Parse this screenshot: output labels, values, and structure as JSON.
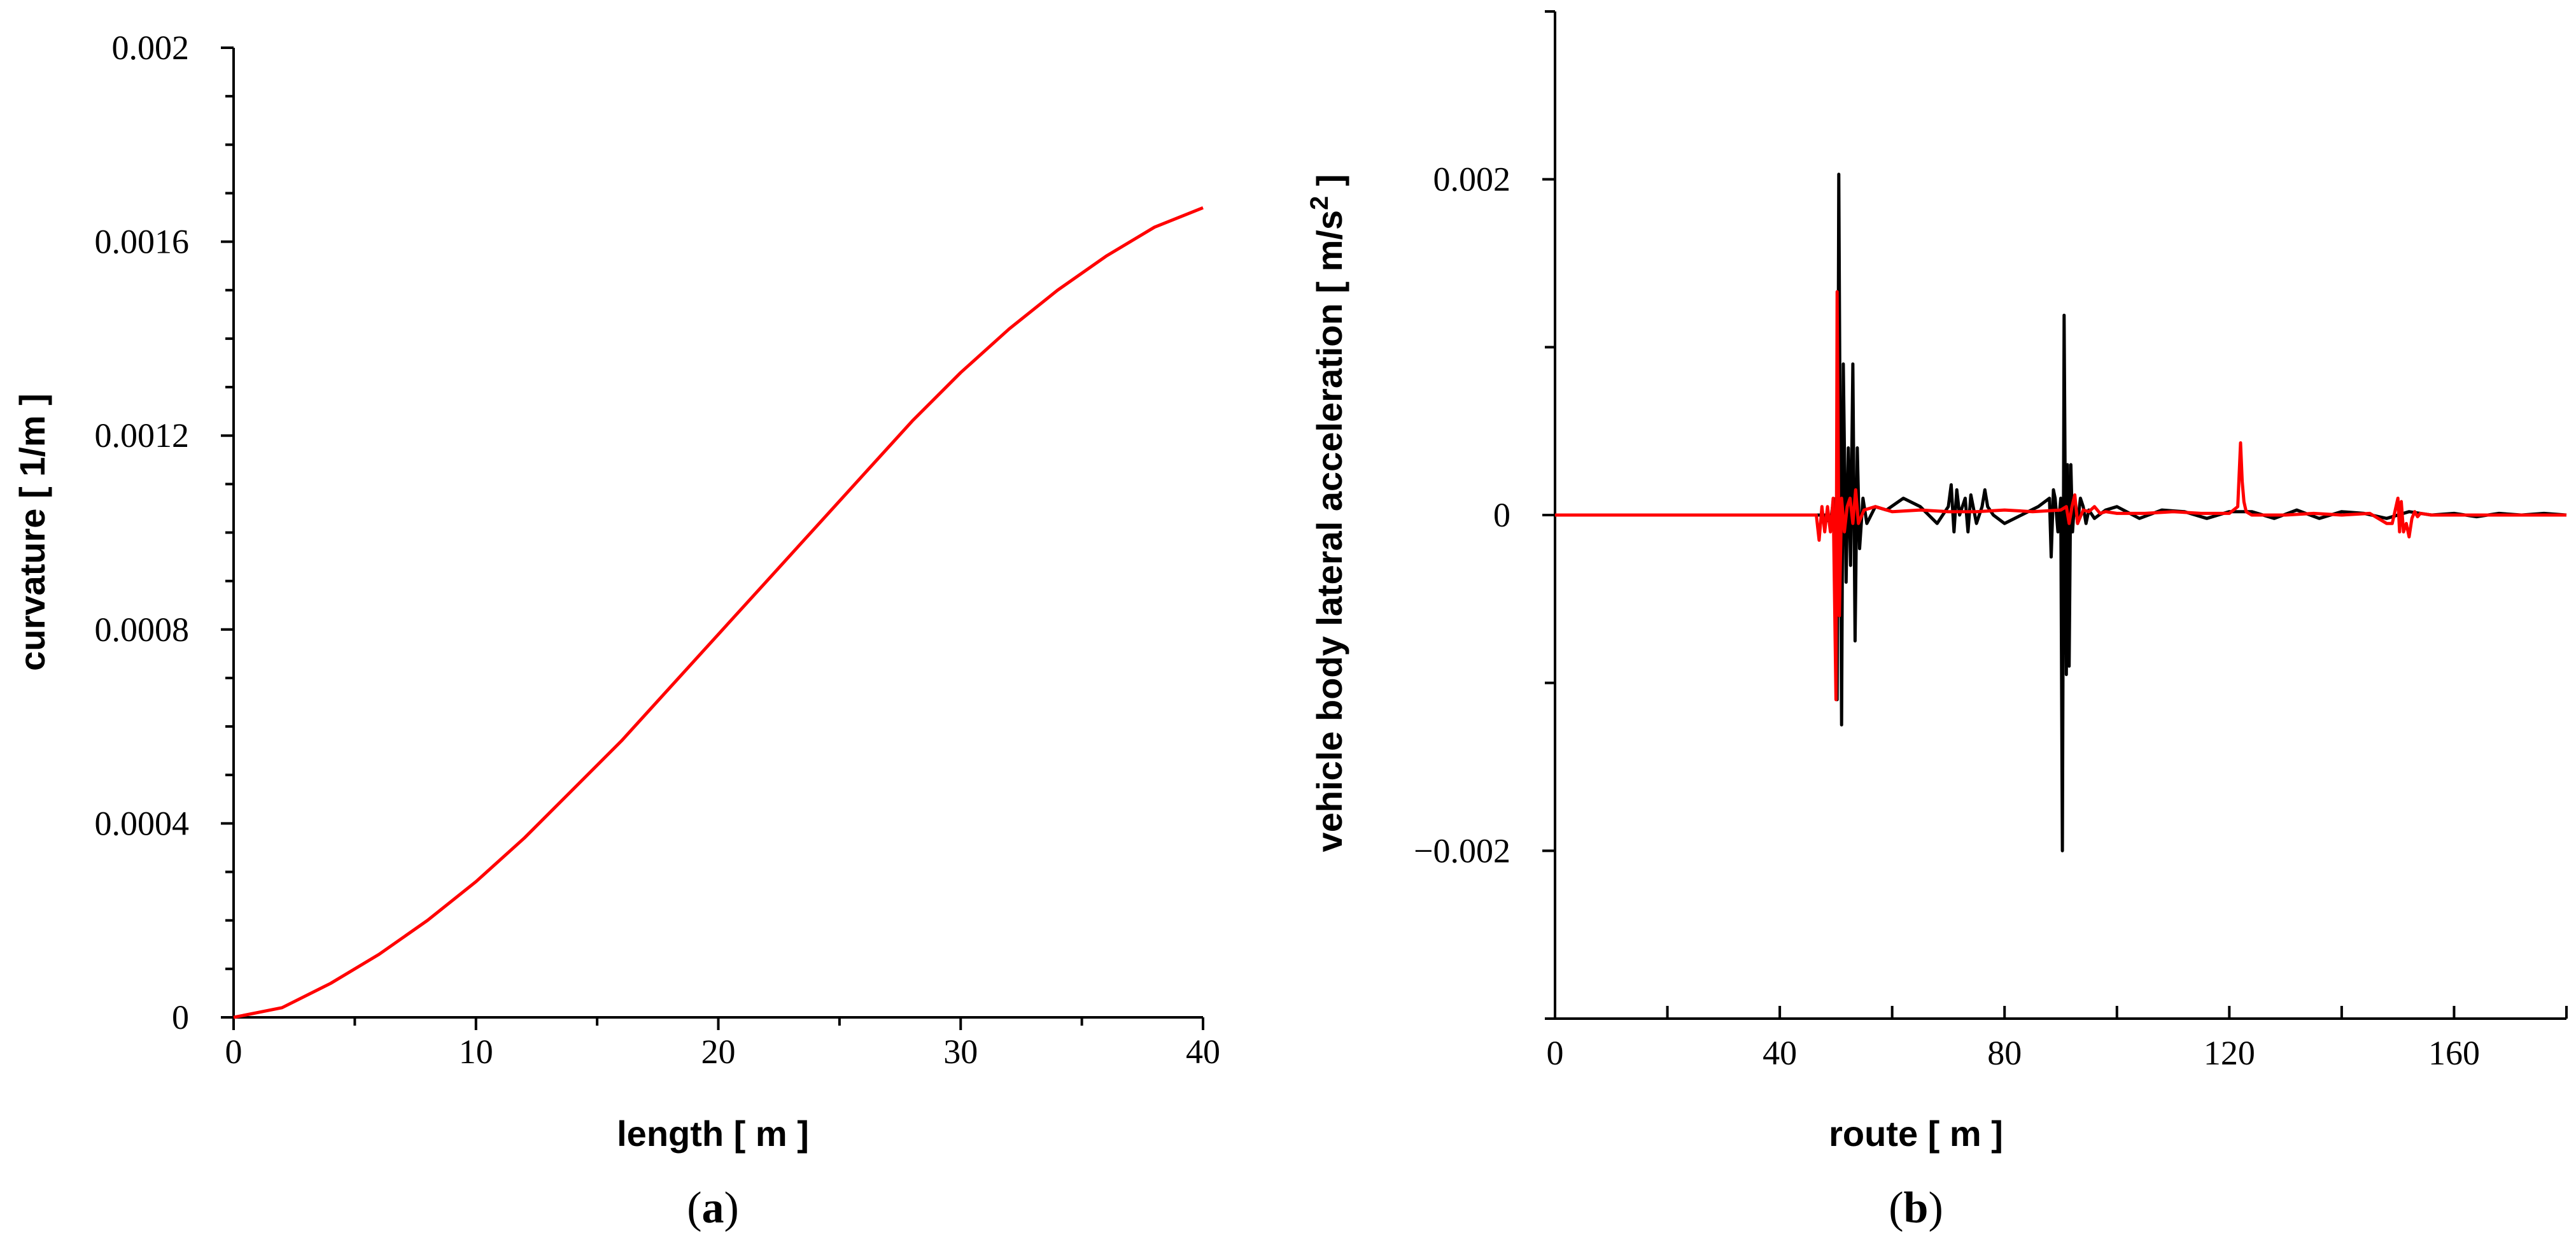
{
  "chart_data": [
    {
      "panel": "(a)",
      "panel_letter": "a",
      "type": "line",
      "xlabel": "length [ m ]",
      "ylabel": "curvature [ 1/m ]",
      "xlim": [
        0,
        40
      ],
      "ylim": [
        0,
        0.002
      ],
      "x_tick_labels": [
        "0",
        "10",
        "20",
        "30",
        "40"
      ],
      "y_tick_labels": [
        "0",
        "0.0004",
        "0.0008",
        "0.0012",
        "0.0016",
        "0.002"
      ],
      "grid": false,
      "series": [
        {
          "color": "#ff0000",
          "x": [
            0,
            2,
            4,
            6,
            8,
            10,
            12,
            14,
            16,
            18,
            20,
            22,
            24,
            26,
            28,
            30,
            32,
            34,
            36,
            38,
            40
          ],
          "y": [
            0,
            2e-05,
            7e-05,
            0.00013,
            0.0002,
            0.00028,
            0.00037,
            0.00047,
            0.00057,
            0.00068,
            0.00079,
            0.0009,
            0.00101,
            0.00112,
            0.00123,
            0.00133,
            0.00142,
            0.0015,
            0.00157,
            0.00163,
            0.00167
          ]
        }
      ]
    },
    {
      "panel": "(b)",
      "panel_letter": "b",
      "type": "line",
      "xlabel": "route [ m ]",
      "ylabel": "vehicle body lateral acceleration [ m/s",
      "ylabel_sup": "2",
      "ylabel_end": " ]",
      "xlim": [
        0,
        180
      ],
      "ylim": [
        -0.003,
        0.003
      ],
      "x_tick_labels": [
        "0",
        "40",
        "80",
        "120",
        "160"
      ],
      "y_tick_labels": [
        "−0.002",
        "0",
        "0.002"
      ],
      "grid": false,
      "series": [
        {
          "color": "#000000",
          "x": [
            0,
            47,
            48,
            49,
            49.5,
            50,
            50.2,
            50.5,
            51,
            51.3,
            51.8,
            52.2,
            52.6,
            53,
            53.4,
            53.8,
            54.2,
            54.8,
            55.5,
            57,
            59,
            62,
            65,
            68,
            70,
            70.5,
            71,
            71.5,
            72,
            73,
            73.5,
            74,
            75,
            76,
            76.5,
            77,
            78,
            80,
            83,
            86,
            88,
            88.3,
            88.7,
            89,
            89.5,
            90,
            90.3,
            90.6,
            91,
            91.2,
            91.5,
            91.8,
            92.1,
            92.5,
            93,
            93.5,
            94,
            94.5,
            95,
            96,
            98,
            100,
            104,
            108,
            112,
            116,
            120,
            124,
            128,
            132,
            136,
            140,
            144,
            148,
            152,
            156,
            160,
            164,
            168,
            172,
            176,
            180
          ],
          "y": [
            0,
            0,
            0,
            -5e-05,
            8e-05,
            0.0001,
            -0.0011,
            0.00203,
            -0.00125,
            0.0009,
            -0.0004,
            0.0004,
            -0.0003,
            0.0009,
            -0.00075,
            0.0004,
            -0.0002,
            0.0001,
            -5e-05,
            5e-05,
            3e-05,
            0.0001,
            5e-05,
            -5e-05,
            5e-05,
            0.00018,
            -0.0001,
            0.00015,
            0,
            0.0001,
            -0.0001,
            0.00012,
            -5e-05,
            5e-05,
            0.00015,
            5e-05,
            0,
            -5e-05,
            0,
            5e-05,
            0.0001,
            -0.00025,
            0.00015,
            0.0001,
            -0.0001,
            0.0001,
            -0.002,
            0.00119,
            -0.00095,
            0.0003,
            -0.0009,
            0.0003,
            -0.0001,
            0.0001,
            -5e-05,
            0.0001,
            5e-05,
            -5e-05,
            3e-05,
            -2e-05,
            3e-05,
            5e-05,
            -2e-05,
            3e-05,
            2e-05,
            -2e-05,
            2e-05,
            2e-05,
            -2e-05,
            3e-05,
            -2e-05,
            2e-05,
            1e-05,
            -2e-05,
            2e-05,
            0,
            1e-05,
            -1e-05,
            1e-05,
            0,
            1e-05,
            0
          ]
        },
        {
          "color": "#ff0000",
          "x": [
            0,
            46.5,
            47,
            47.5,
            48,
            48.5,
            49,
            49.5,
            50,
            50.2,
            50.6,
            51,
            51.5,
            52,
            52.5,
            53,
            53.5,
            54,
            55,
            57,
            60,
            65,
            70,
            75,
            80,
            85,
            90,
            91,
            91.5,
            92,
            92.5,
            93,
            94,
            95,
            96,
            97,
            98,
            100,
            105,
            110,
            115,
            120,
            121.5,
            122,
            122.3,
            122.6,
            123,
            123.5,
            124,
            126,
            130,
            135,
            140,
            145,
            148,
            149,
            150,
            150.3,
            150.6,
            151,
            151.5,
            152,
            152.5,
            153,
            153.5,
            154,
            156,
            160,
            165,
            170,
            175,
            180
          ],
          "y": [
            0,
            0,
            -0.00015,
            5e-05,
            -0.0001,
            5e-05,
            -0.0001,
            0.0001,
            -0.0011,
            0.00133,
            -0.0006,
            0.0001,
            -0.0001,
            5e-05,
            0.0001,
            -5e-05,
            0.00015,
            -5e-05,
            3e-05,
            5e-05,
            2e-05,
            3e-05,
            2e-05,
            2e-05,
            3e-05,
            2e-05,
            3e-05,
            5e-05,
            -5e-05,
            5e-05,
            0.00012,
            -5e-05,
            3e-05,
            2e-05,
            5e-05,
            1e-05,
            2e-05,
            1e-05,
            1e-05,
            2e-05,
            1e-05,
            1e-05,
            5e-05,
            0.00043,
            0.0002,
            8e-05,
            2e-05,
            1e-05,
            0,
            0,
            0,
            1e-05,
            0,
            1e-05,
            -5e-05,
            -5e-05,
            0.0001,
            -0.0001,
            8e-05,
            -0.0001,
            -5e-05,
            -0.00013,
            -2e-05,
            2e-05,
            -1e-05,
            1e-05,
            0,
            0,
            0,
            0,
            0,
            0
          ]
        }
      ]
    }
  ]
}
